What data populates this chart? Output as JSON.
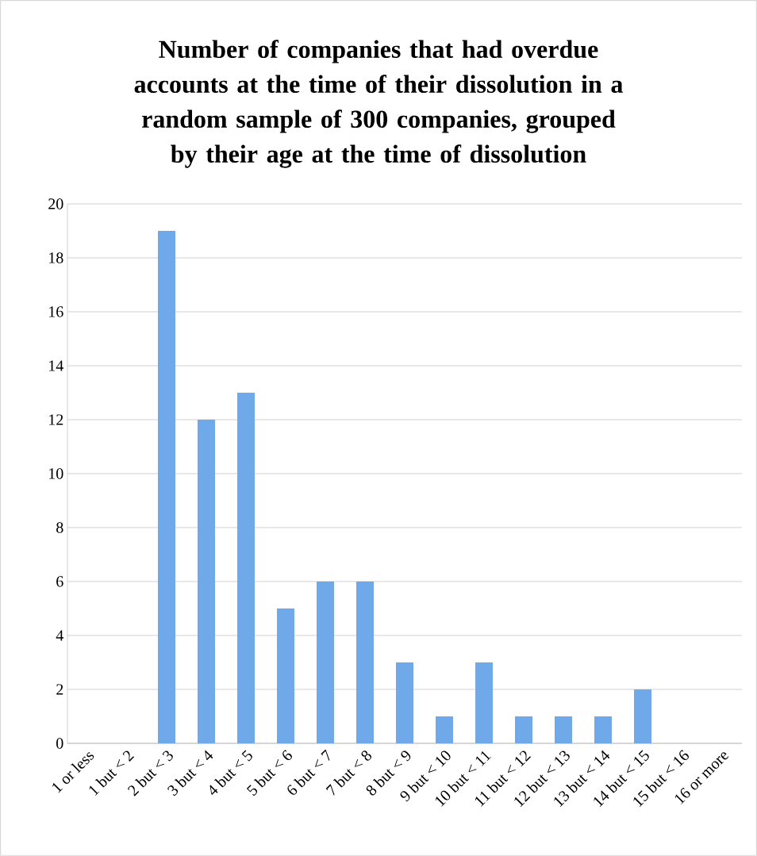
{
  "chart_data": {
    "type": "bar",
    "title": "Number of companies that had overdue accounts at the time of their dissolution in a random sample of 300 companies, grouped by their age at the time of dissolution",
    "categories": [
      "1 or less",
      "1 but < 2",
      "2 but < 3",
      "3 but < 4",
      "4 but < 5",
      "5 but < 6",
      "6 but < 7",
      "7 but < 8",
      "8 but < 9",
      "9 but < 10",
      "10 but < 11",
      "11 but < 12",
      "12 but < 13",
      "13 but < 14",
      "14 but < 15",
      "15 but < 16",
      "16 or more"
    ],
    "values": [
      0,
      0,
      19,
      12,
      13,
      5,
      6,
      6,
      3,
      1,
      3,
      1,
      1,
      1,
      2,
      0,
      0
    ],
    "color": "#6fa9e9",
    "ylim": [
      0,
      20
    ],
    "yticks": [
      0,
      2,
      4,
      6,
      8,
      10,
      12,
      14,
      16,
      18,
      20
    ],
    "grid": "y"
  }
}
